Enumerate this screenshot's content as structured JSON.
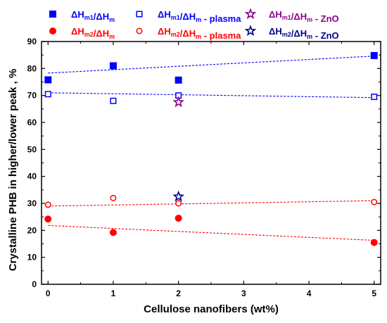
{
  "chart_data": {
    "type": "scatter",
    "title": "",
    "xlabel": "Cellulose nanofibers (wt%)",
    "ylabel": "Crystalline PHB in higher/lower peak , %",
    "xlim": [
      -0.1,
      5.1
    ],
    "ylim": [
      0,
      90
    ],
    "xticks": [
      "0",
      "1",
      "2",
      "3",
      "4",
      "5"
    ],
    "yticks": [
      "0",
      "10",
      "20",
      "30",
      "40",
      "50",
      "60",
      "70",
      "80",
      "90"
    ],
    "grid": false,
    "legend_placement": "top",
    "series": [
      {
        "legend": {
          "main": "ΔH",
          "sub1": "m1",
          "slash": "/ΔH",
          "sub2": "m",
          "tail": ""
        },
        "marker": "square-filled",
        "color": "#0000ff",
        "x": [
          0,
          1,
          2,
          5
        ],
        "y": [
          75.8,
          81,
          75.7,
          84.8
        ],
        "trend": {
          "from": [
            0,
            78.3
          ],
          "to": [
            5,
            84.6
          ],
          "color": "#0000ff"
        }
      },
      {
        "legend": {
          "main": "ΔH",
          "sub1": "m1",
          "slash": "/ΔH",
          "sub2": "m",
          "tail": "- plasma"
        },
        "marker": "square-open",
        "color": "#0000ff",
        "x": [
          0,
          1,
          2,
          5
        ],
        "y": [
          70.5,
          68,
          70,
          69.5
        ],
        "trend": {
          "from": [
            0,
            71
          ],
          "to": [
            5,
            69.2
          ],
          "color": "#0000ff"
        }
      },
      {
        "legend": {
          "main": "ΔH",
          "sub1": "m1",
          "slash": "/ΔH",
          "sub2": "m",
          "tail": "- ZnO"
        },
        "marker": "star-open",
        "color": "#8b008b",
        "x": [
          2
        ],
        "y": [
          67.5
        ]
      },
      {
        "legend": {
          "main": "ΔH",
          "sub1": "m2",
          "slash": "/ΔH",
          "sub2": "m",
          "tail": ""
        },
        "marker": "circle-filled",
        "color": "#ff0000",
        "x": [
          0,
          1,
          2,
          5
        ],
        "y": [
          24.2,
          19.2,
          24.5,
          15.5
        ],
        "trend": {
          "from": [
            0,
            21.8
          ],
          "to": [
            5,
            16.3
          ],
          "color": "#ff0000"
        }
      },
      {
        "legend": {
          "main": "ΔH",
          "sub1": "m2",
          "slash": "/ΔH",
          "sub2": "m",
          "tail": "- plasma"
        },
        "marker": "circle-open",
        "color": "#ff0000",
        "x": [
          0,
          1,
          2,
          5
        ],
        "y": [
          29.5,
          32,
          30,
          30.5
        ],
        "trend": {
          "from": [
            0,
            29
          ],
          "to": [
            5,
            31
          ],
          "color": "#ff0000"
        }
      },
      {
        "legend": {
          "main": "ΔH",
          "sub1": "m2",
          "slash": "/ΔH",
          "sub2": "m",
          "tail": "- ZnO"
        },
        "marker": "star-open",
        "color": "#00008b",
        "x": [
          2
        ],
        "y": [
          32.5
        ]
      }
    ]
  }
}
